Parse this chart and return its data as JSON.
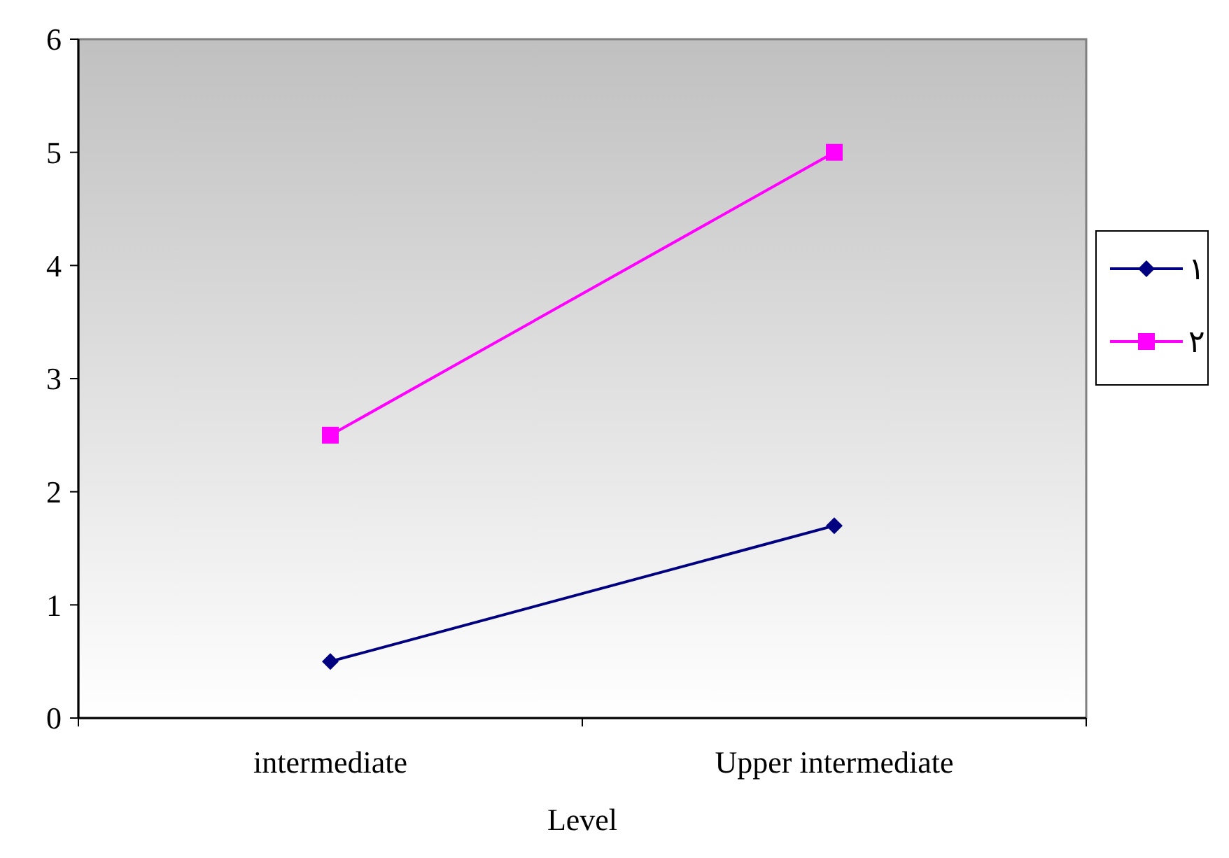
{
  "chart_data": {
    "type": "line",
    "xlabel": "Level",
    "categories": [
      "intermediate",
      "Upper intermediate"
    ],
    "ylim": [
      0,
      6
    ],
    "yticks": [
      0,
      1,
      2,
      3,
      4,
      5,
      6
    ],
    "grid": false,
    "legend": "right",
    "series": [
      {
        "name": "١",
        "color": "#000080",
        "marker": "diamond",
        "values": [
          0.5,
          1.7
        ]
      },
      {
        "name": "٢",
        "color": "#ff00ff",
        "marker": "square",
        "values": [
          2.5,
          5
        ]
      }
    ]
  }
}
